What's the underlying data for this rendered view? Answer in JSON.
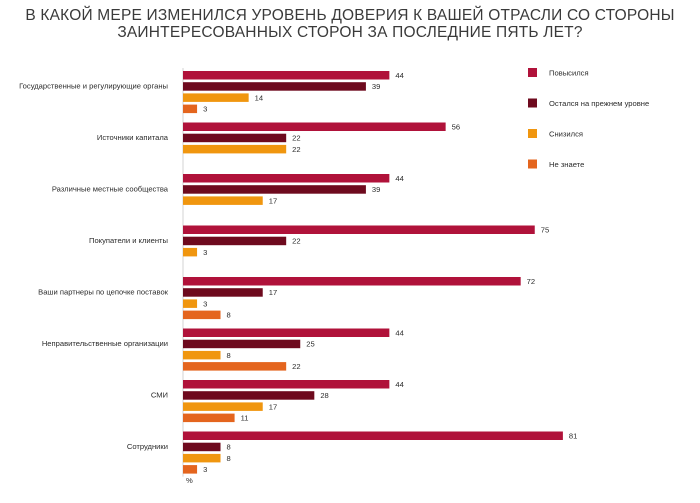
{
  "chart_data": {
    "type": "bar",
    "orientation": "horizontal",
    "title_lines": [
      "В КАКОЙ МЕРЕ ИЗМЕНИЛСЯ УРОВЕНЬ ДОВЕРИЯ К ВАШЕЙ ОТРАСЛИ СО СТОРОНЫ",
      "ЗАИНТЕРЕСОВАННЫХ СТОРОН ЗА ПОСЛЕДНИЕ ПЯТЬ ЛЕТ?"
    ],
    "unit_label": "%",
    "categories": [
      "Государственные и регулирующие органы",
      "Источники капитала",
      "Различные местные сообщества",
      "Покупатели и клиенты",
      "Ваши партнеры по цепочке поставок",
      "Неправительственные организации",
      "СМИ",
      "Сотрудники"
    ],
    "series": [
      {
        "name": "Повысился",
        "color": "#b0123a",
        "values": [
          44,
          56,
          44,
          75,
          72,
          44,
          44,
          81
        ]
      },
      {
        "name": "Остался на прежнем уровне",
        "color": "#6e0a1e",
        "values": [
          39,
          22,
          39,
          22,
          17,
          25,
          28,
          8
        ]
      },
      {
        "name": "Снизился",
        "color": "#f0960f",
        "values": [
          14,
          22,
          17,
          3,
          3,
          8,
          17,
          8
        ]
      },
      {
        "name": "Не знаете",
        "color": "#e4651e",
        "values": [
          3,
          null,
          null,
          null,
          8,
          22,
          11,
          3
        ]
      }
    ],
    "legend_position": "right",
    "grid": false
  }
}
